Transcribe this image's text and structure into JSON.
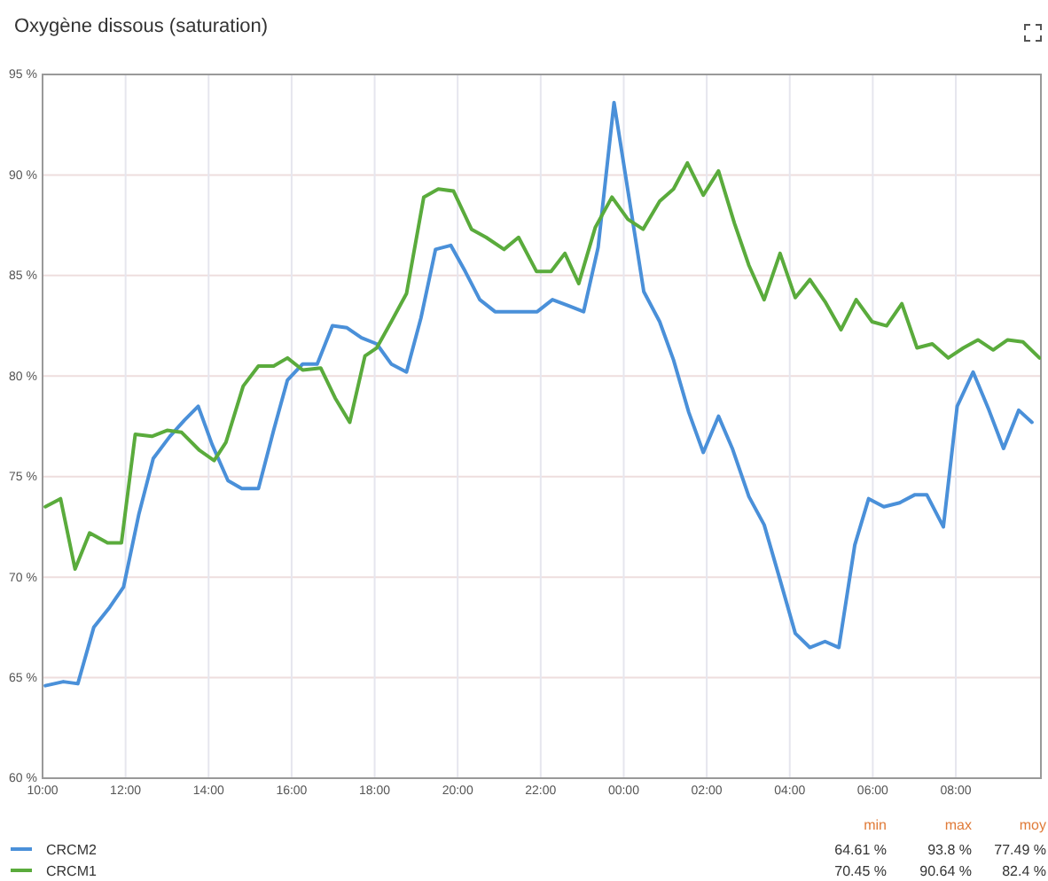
{
  "chart_data": {
    "type": "line",
    "title": "Oxygène dissous (saturation)",
    "xlim": [
      "2000-01-01T10:00",
      "2000-01-02T10:03"
    ],
    "ylim": [
      60,
      95
    ],
    "xticks": [
      {
        "value": "2000-01-01T10:00",
        "label": "10:00"
      },
      {
        "value": "2000-01-01T12:00",
        "label": "12:00"
      },
      {
        "value": "2000-01-01T14:00",
        "label": "14:00"
      },
      {
        "value": "2000-01-01T16:00",
        "label": "16:00"
      },
      {
        "value": "2000-01-01T18:00",
        "label": "18:00"
      },
      {
        "value": "2000-01-01T20:00",
        "label": "20:00"
      },
      {
        "value": "2000-01-01T22:00",
        "label": "22:00"
      },
      {
        "value": "2000-01-02T00:00",
        "label": "00:00"
      },
      {
        "value": "2000-01-02T02:00",
        "label": "02:00"
      },
      {
        "value": "2000-01-02T04:00",
        "label": "04:00"
      },
      {
        "value": "2000-01-02T06:00",
        "label": "06:00"
      },
      {
        "value": "2000-01-02T08:00",
        "label": "08:00"
      }
    ],
    "yticks": [
      {
        "value": 60,
        "label": "60 %"
      },
      {
        "value": 65,
        "label": "65 %"
      },
      {
        "value": 70,
        "label": "70 %"
      },
      {
        "value": 75,
        "label": "75 %"
      },
      {
        "value": 80,
        "label": "80 %"
      },
      {
        "value": 85,
        "label": "85 %"
      },
      {
        "value": 90,
        "label": "90 %"
      },
      {
        "value": 95,
        "label": "95 %"
      }
    ],
    "grid": true,
    "legend": "bottom",
    "marker": "none",
    "line_style": "solid",
    "series": [
      {
        "name": "CRCM2",
        "color": "#4a90d9",
        "x": [
          "2000-01-01T10:04",
          "2000-01-01T10:30",
          "2000-01-01T10:51",
          "2000-01-01T11:14",
          "2000-01-01T11:37",
          "2000-01-01T11:57",
          "2000-01-01T12:19",
          "2000-01-01T12:40",
          "2000-01-01T13:04",
          "2000-01-01T13:25",
          "2000-01-01T13:45",
          "2000-01-01T14:05",
          "2000-01-01T14:28",
          "2000-01-01T14:48",
          "2000-01-01T15:12",
          "2000-01-01T15:34",
          "2000-01-01T15:54",
          "2000-01-01T16:16",
          "2000-01-01T16:37",
          "2000-01-01T16:59",
          "2000-01-01T17:20",
          "2000-01-01T17:41",
          "2000-01-01T18:03",
          "2000-01-01T18:24",
          "2000-01-01T18:46",
          "2000-01-01T19:07",
          "2000-01-01T19:28",
          "2000-01-01T19:50",
          "2000-01-01T20:11",
          "2000-01-01T20:32",
          "2000-01-01T20:54",
          "2000-01-01T21:19",
          "2000-01-01T21:55",
          "2000-01-01T22:17",
          "2000-01-01T22:40",
          "2000-01-01T23:02",
          "2000-01-01T23:23",
          "2000-01-01T23:46",
          "2000-01-02T00:08",
          "2000-01-02T00:29",
          "2000-01-02T00:52",
          "2000-01-02T01:12",
          "2000-01-02T01:34",
          "2000-01-02T01:55",
          "2000-01-02T02:17",
          "2000-01-02T02:37",
          "2000-01-02T03:01",
          "2000-01-02T03:23",
          "2000-01-02T03:44",
          "2000-01-02T04:08",
          "2000-01-02T04:29",
          "2000-01-02T04:51",
          "2000-01-02T05:11",
          "2000-01-02T05:34",
          "2000-01-02T05:54",
          "2000-01-02T06:16",
          "2000-01-02T06:39",
          "2000-01-02T07:01",
          "2000-01-02T07:18",
          "2000-01-02T07:42",
          "2000-01-02T08:02",
          "2000-01-02T08:25",
          "2000-01-02T08:48",
          "2000-01-02T09:09",
          "2000-01-02T09:31",
          "2000-01-02T09:50"
        ],
        "values": [
          64.6,
          64.8,
          64.7,
          67.5,
          68.5,
          69.5,
          73.1,
          75.9,
          77.0,
          77.8,
          78.5,
          76.6,
          74.8,
          74.4,
          74.4,
          77.3,
          79.8,
          80.6,
          80.6,
          82.5,
          82.4,
          81.9,
          81.6,
          80.6,
          80.2,
          82.9,
          86.3,
          86.5,
          85.2,
          83.8,
          83.2,
          83.2,
          83.2,
          83.8,
          83.5,
          83.2,
          86.4,
          93.6,
          88.8,
          84.2,
          82.7,
          80.8,
          78.2,
          76.2,
          78.0,
          76.4,
          74.0,
          72.6,
          70.1,
          67.2,
          66.5,
          66.8,
          66.5,
          71.6,
          73.9,
          73.5,
          73.7,
          74.1,
          74.1,
          72.5,
          78.5,
          80.2,
          78.3,
          76.4,
          78.3,
          77.7
        ]
      },
      {
        "name": "CRCM1",
        "color": "#5aab3c",
        "x": [
          "2000-01-01T10:04",
          "2000-01-01T10:26",
          "2000-01-01T10:47",
          "2000-01-01T11:08",
          "2000-01-01T11:34",
          "2000-01-01T11:54",
          "2000-01-01T12:14",
          "2000-01-01T12:38",
          "2000-01-01T13:00",
          "2000-01-01T13:21",
          "2000-01-01T13:47",
          "2000-01-01T14:08",
          "2000-01-01T14:25",
          "2000-01-01T14:50",
          "2000-01-01T15:12",
          "2000-01-01T15:34",
          "2000-01-01T15:54",
          "2000-01-01T16:16",
          "2000-01-01T16:42",
          "2000-01-01T17:03",
          "2000-01-01T17:24",
          "2000-01-01T17:46",
          "2000-01-01T18:03",
          "2000-01-01T18:24",
          "2000-01-01T18:46",
          "2000-01-01T19:11",
          "2000-01-01T19:32",
          "2000-01-01T19:54",
          "2000-01-01T20:20",
          "2000-01-01T20:41",
          "2000-01-01T21:07",
          "2000-01-01T21:28",
          "2000-01-01T21:54",
          "2000-01-01T22:15",
          "2000-01-01T22:35",
          "2000-01-01T22:55",
          "2000-01-01T23:19",
          "2000-01-01T23:43",
          "2000-01-02T00:06",
          "2000-01-02T00:28",
          "2000-01-02T00:52",
          "2000-01-02T01:12",
          "2000-01-02T01:32",
          "2000-01-02T01:55",
          "2000-01-02T02:17",
          "2000-01-02T02:40",
          "2000-01-02T03:01",
          "2000-01-02T03:23",
          "2000-01-02T03:46",
          "2000-01-02T04:08",
          "2000-01-02T04:29",
          "2000-01-02T04:51",
          "2000-01-02T05:14",
          "2000-01-02T05:36",
          "2000-01-02T05:59",
          "2000-01-02T06:20",
          "2000-01-02T06:42",
          "2000-01-02T07:04",
          "2000-01-02T07:26",
          "2000-01-02T07:49",
          "2000-01-02T08:11",
          "2000-01-02T08:32",
          "2000-01-02T08:54",
          "2000-01-02T09:15",
          "2000-01-02T09:37",
          "2000-01-02T10:01"
        ],
        "values": [
          73.5,
          73.9,
          70.4,
          72.2,
          71.7,
          71.7,
          77.1,
          77.0,
          77.3,
          77.2,
          76.3,
          75.8,
          76.7,
          79.5,
          80.5,
          80.5,
          80.9,
          80.3,
          80.4,
          78.9,
          77.7,
          81.0,
          81.4,
          82.7,
          84.1,
          88.9,
          89.3,
          89.2,
          87.3,
          86.9,
          86.3,
          86.9,
          85.2,
          85.2,
          86.1,
          84.6,
          87.4,
          88.9,
          87.8,
          87.3,
          88.7,
          89.3,
          90.6,
          89.0,
          90.2,
          87.6,
          85.5,
          83.8,
          86.1,
          83.9,
          84.8,
          83.7,
          82.3,
          83.8,
          82.7,
          82.5,
          83.6,
          81.4,
          81.6,
          80.9,
          81.4,
          81.8,
          81.3,
          81.8,
          81.7,
          80.9
        ]
      }
    ],
    "annotations": [
      "min",
      "max",
      "moy",
      "64.61 %",
      "93.8 %",
      "77.49 %",
      "70.45 %",
      "90.64 %",
      "82.4 %"
    ]
  }
}
